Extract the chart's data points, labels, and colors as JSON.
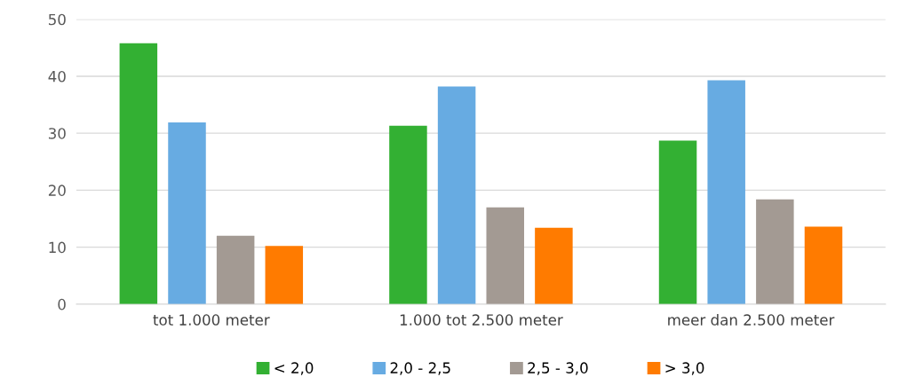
{
  "chart_data": {
    "type": "bar",
    "categories": [
      "tot 1.000 meter",
      "1.000 tot 2.500 meter",
      "meer dan 2.500 meter"
    ],
    "series": [
      {
        "name": "< 2,0",
        "color": "#33b033",
        "values": [
          45.8,
          31.3,
          28.7
        ]
      },
      {
        "name": "2,0 - 2,5",
        "color": "#67abe2",
        "values": [
          31.9,
          38.2,
          39.3
        ]
      },
      {
        "name": "2,5 - 3,0",
        "color": "#a39a93",
        "values": [
          12.0,
          17.0,
          18.4
        ]
      },
      {
        "name": "> 3,0",
        "color": "#ff7b00",
        "values": [
          10.2,
          13.4,
          13.6
        ]
      }
    ],
    "ylim": [
      0,
      50
    ],
    "yticks": [
      0,
      10,
      20,
      30,
      40,
      50
    ],
    "grid": "y",
    "legend": "bottom"
  }
}
